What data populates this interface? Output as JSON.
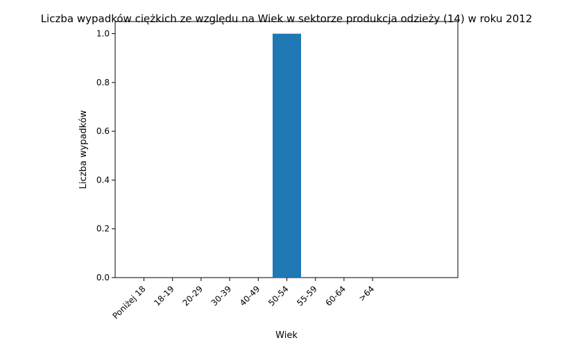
{
  "chart_data": {
    "type": "bar",
    "title": "Liczba wypadków ciężkich ze względu na Wiek w sektorze produkcja odzieży  (14)   w roku 2012",
    "xlabel": "Wiek",
    "ylabel": "Liczba wypadków",
    "categories": [
      "Poniżej 18",
      "18-19",
      "20-29",
      "30-39",
      "40-49",
      "50-54",
      "55-59",
      "60-64",
      ">64"
    ],
    "values": [
      0,
      0,
      0,
      0,
      0,
      1,
      0,
      0,
      0
    ],
    "ylim": [
      0,
      1.05
    ],
    "yticks": [
      "0.0",
      "0.2",
      "0.4",
      "0.6",
      "0.8",
      "1.0"
    ],
    "bar_color": "#1f77b4",
    "grid": false
  }
}
